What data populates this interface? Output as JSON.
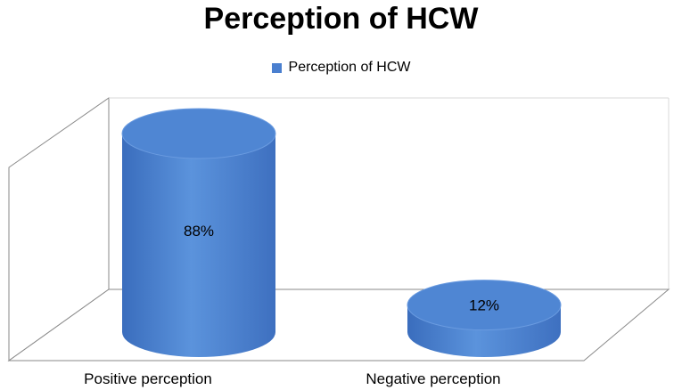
{
  "chart_data": {
    "type": "bar",
    "style": "3d-cylinder",
    "title": "Perception of HCW",
    "categories": [
      "Positive perception",
      "Negative perception"
    ],
    "series": [
      {
        "name": "Perception of HCW",
        "values": [
          88,
          12
        ],
        "color": "#4a7fcf"
      }
    ],
    "data_labels": [
      "88%",
      "12%"
    ],
    "value_unit": "%",
    "ylim": [
      0,
      100
    ],
    "grid": false,
    "legend_position": "top"
  }
}
